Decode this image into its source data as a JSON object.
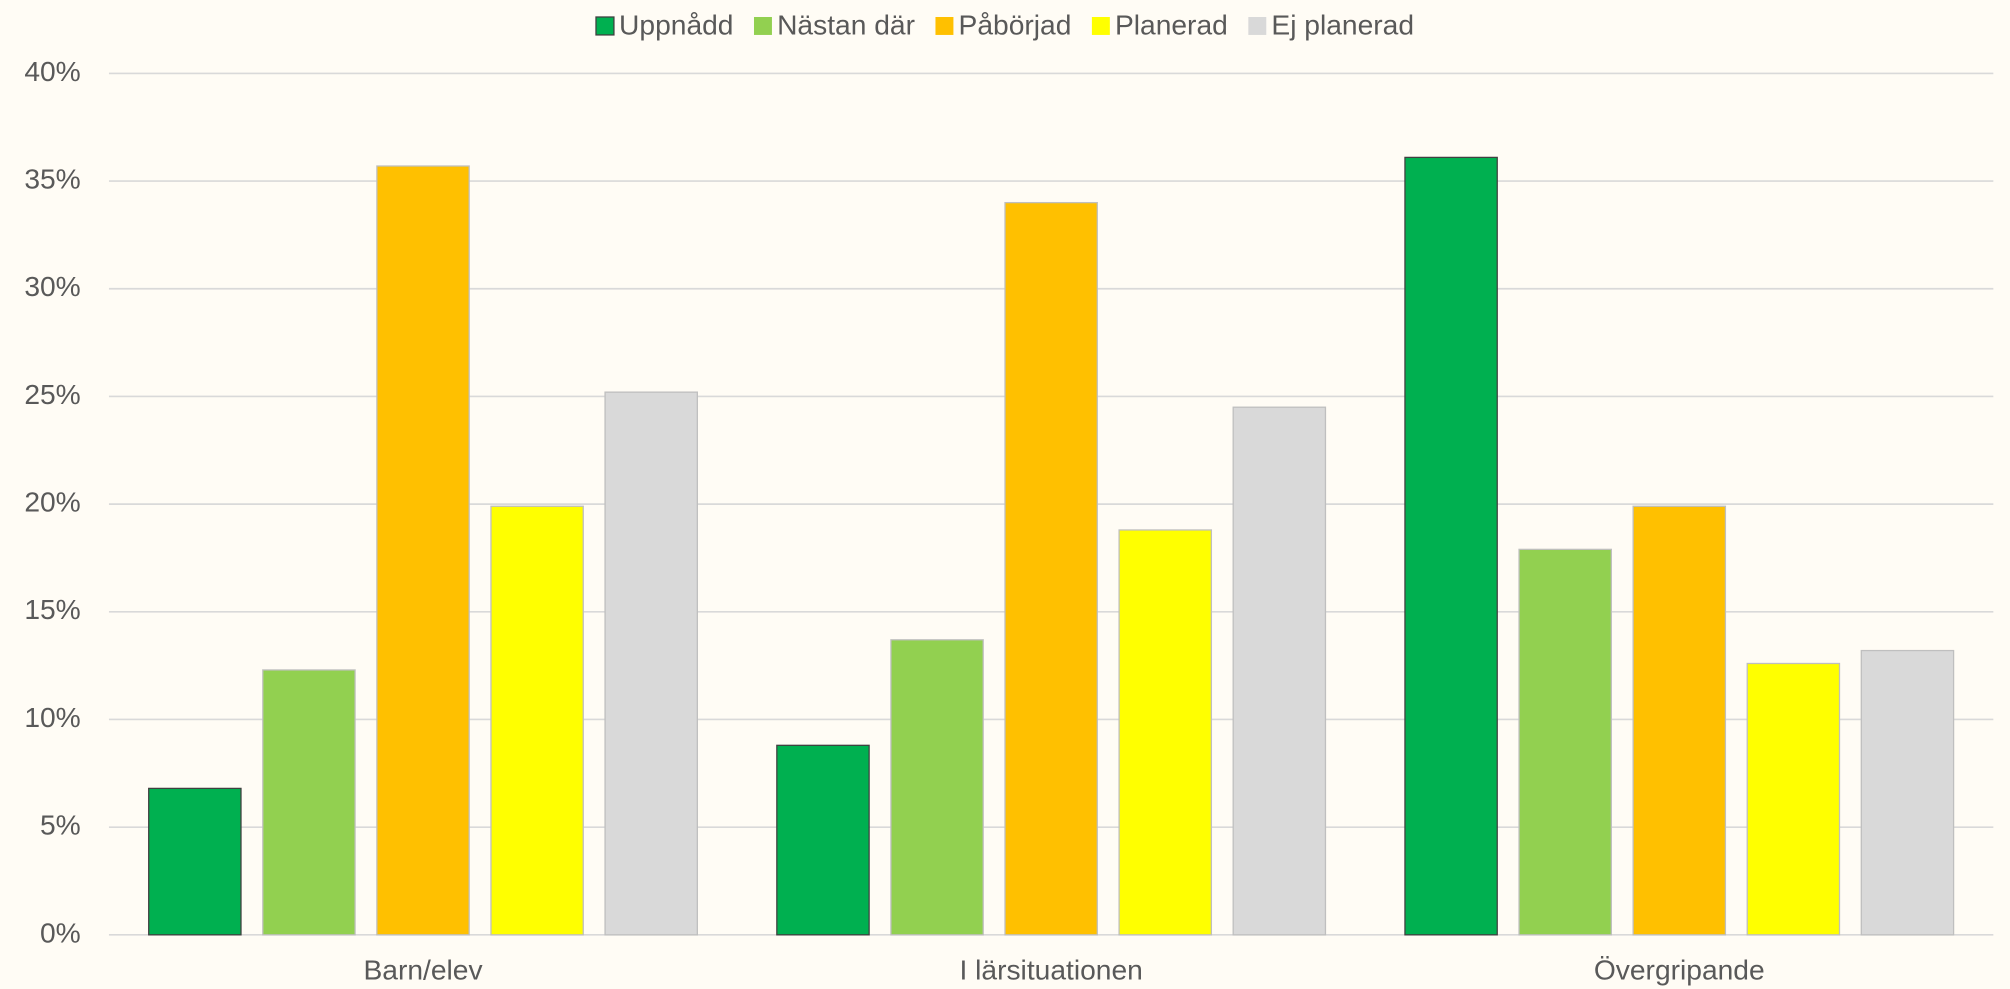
{
  "chart_data": {
    "type": "bar",
    "categories": [
      "Barn/elev",
      "I lärsituationen",
      "Övergripande"
    ],
    "series": [
      {
        "name": "Uppnådd",
        "color": "#00b050",
        "values": [
          6.8,
          8.8,
          36.1
        ]
      },
      {
        "name": "Nästan där",
        "color": "#92d050",
        "values": [
          12.3,
          13.7,
          17.9
        ]
      },
      {
        "name": "Påbörjad",
        "color": "#ffc000",
        "values": [
          35.7,
          34.0,
          19.9
        ]
      },
      {
        "name": "Planerad",
        "color": "#ffff00",
        "values": [
          19.9,
          18.8,
          12.6
        ]
      },
      {
        "name": "Ej planerad",
        "color": "#d9d9d9",
        "values": [
          25.2,
          24.5,
          13.2
        ]
      }
    ],
    "ylim": [
      0,
      40
    ],
    "yticks": [
      {
        "value": 0,
        "label": "0%"
      },
      {
        "value": 5,
        "label": "5%"
      },
      {
        "value": 10,
        "label": "10%"
      },
      {
        "value": 15,
        "label": "15%"
      },
      {
        "value": 20,
        "label": "20%"
      },
      {
        "value": 25,
        "label": "25%"
      },
      {
        "value": 30,
        "label": "30%"
      },
      {
        "value": 35,
        "label": "35%"
      },
      {
        "value": 40,
        "label": "40%"
      }
    ],
    "grid": true,
    "legend": "top"
  }
}
